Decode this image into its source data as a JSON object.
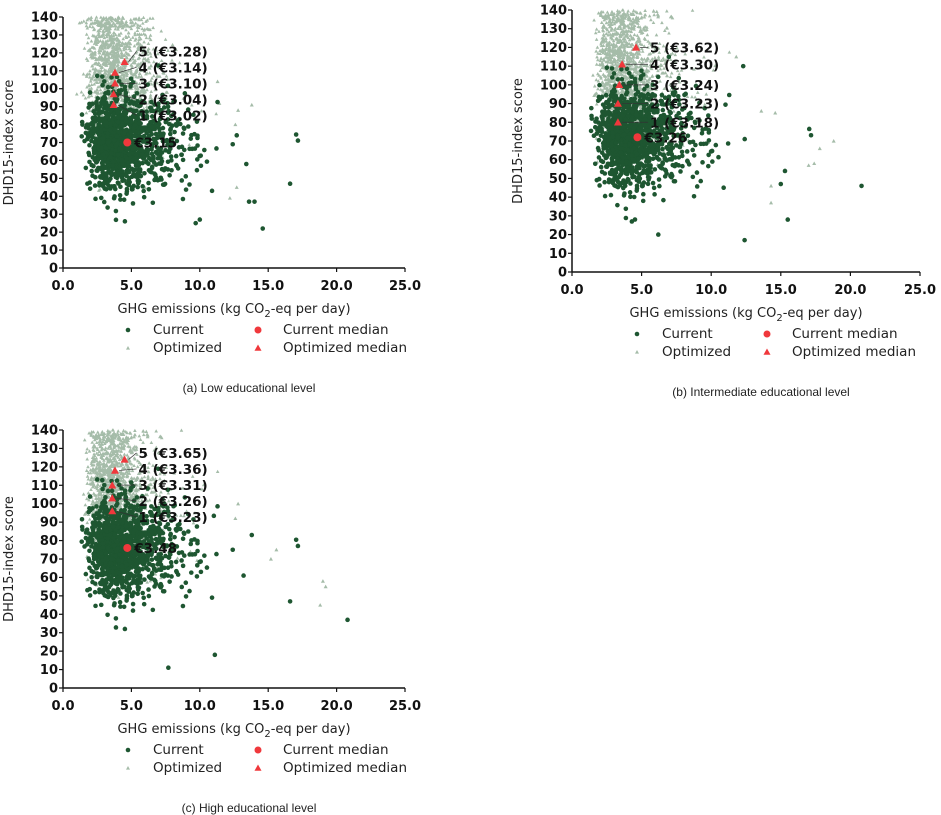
{
  "chart_data": [
    {
      "type": "scatter",
      "id": "a",
      "caption": "(a) Low educational level",
      "xlabel": "GHG emissions (kg CO",
      "xlabel_sub": "2",
      "xlabel_end": "-eq per day)",
      "ylabel": "DHD15-index score",
      "xlim": [
        0,
        25
      ],
      "ylim": [
        0,
        140
      ],
      "xticks": [
        "0.0",
        "5.0",
        "10.0",
        "15.0",
        "20.0",
        "25.0"
      ],
      "yticks": [
        "0",
        "10",
        "20",
        "30",
        "40",
        "50",
        "60",
        "70",
        "80",
        "90",
        "100",
        "110",
        "120",
        "130",
        "140"
      ],
      "legend": [
        "Current",
        "Optimized",
        "Current median",
        "Optimized median"
      ],
      "current_median": {
        "x": 4.7,
        "y": 70,
        "label": "€3.15"
      },
      "optimized_medians": [
        {
          "x": 3.7,
          "y": 91,
          "label": "1 (€3.02)"
        },
        {
          "x": 3.7,
          "y": 97,
          "label": "2 (€3.04)"
        },
        {
          "x": 3.8,
          "y": 103,
          "label": "3 (€3.10)"
        },
        {
          "x": 3.8,
          "y": 109,
          "label": "4 (€3.14)"
        },
        {
          "x": 4.5,
          "y": 115,
          "label": "5 (€3.28)"
        }
      ],
      "current_outliers": [
        [
          16.6,
          47
        ],
        [
          14.6,
          22
        ],
        [
          14.0,
          37
        ],
        [
          13.6,
          37
        ],
        [
          9.7,
          25
        ],
        [
          10.0,
          27
        ],
        [
          12.7,
          74
        ],
        [
          13.4,
          58
        ]
      ],
      "optimized_outliers": [
        [
          12.8,
          88
        ],
        [
          13.8,
          91
        ],
        [
          12.6,
          80
        ],
        [
          11.3,
          104
        ],
        [
          12.2,
          39
        ],
        [
          12.7,
          45
        ]
      ]
    },
    {
      "type": "scatter",
      "id": "b",
      "caption": "(b) Intermediate educational level",
      "xlabel": "GHG emissions (kg CO",
      "xlabel_sub": "2",
      "xlabel_end": "-eq per day)",
      "ylabel": "DHD15-index score",
      "xlim": [
        0,
        25
      ],
      "ylim": [
        0,
        140
      ],
      "xticks": [
        "0.0",
        "5.0",
        "10.0",
        "15.0",
        "20.0",
        "25.0"
      ],
      "yticks": [
        "0",
        "10",
        "20",
        "30",
        "40",
        "50",
        "60",
        "70",
        "80",
        "90",
        "100",
        "110",
        "120",
        "130",
        "140"
      ],
      "legend": [
        "Current",
        "Optimized",
        "Current median",
        "Optimized median"
      ],
      "current_median": {
        "x": 4.7,
        "y": 72,
        "label": "€3.26"
      },
      "optimized_medians": [
        {
          "x": 3.3,
          "y": 80,
          "label": "1 (€3.18)"
        },
        {
          "x": 3.3,
          "y": 90,
          "label": "2 (€3.23)"
        },
        {
          "x": 3.4,
          "y": 100,
          "label": "3 (€3.24)"
        },
        {
          "x": 3.6,
          "y": 111,
          "label": "4 (€3.30)"
        },
        {
          "x": 4.6,
          "y": 120,
          "label": "5 (€3.62)"
        }
      ],
      "current_outliers": [
        [
          20.8,
          46
        ],
        [
          15.5,
          28
        ],
        [
          12.4,
          17
        ],
        [
          15.3,
          54
        ],
        [
          15.0,
          47
        ],
        [
          12.3,
          110
        ],
        [
          6.2,
          20
        ],
        [
          4.3,
          27
        ]
      ],
      "optimized_outliers": [
        [
          18.8,
          70
        ],
        [
          17.8,
          66
        ],
        [
          17.4,
          58
        ],
        [
          17.0,
          57
        ],
        [
          14.6,
          85
        ],
        [
          13.6,
          86
        ],
        [
          14.3,
          37
        ],
        [
          14.3,
          46
        ],
        [
          11.8,
          115
        ]
      ]
    },
    {
      "type": "scatter",
      "id": "c",
      "caption": "(c) High educational level",
      "xlabel": "GHG emissions (kg CO",
      "xlabel_sub": "2",
      "xlabel_end": "-eq per day)",
      "ylabel": "DHD15-index score",
      "xlim": [
        0,
        25
      ],
      "ylim": [
        0,
        140
      ],
      "xticks": [
        "0.0",
        "5.0",
        "10.0",
        "15.0",
        "20.0",
        "25.0"
      ],
      "yticks": [
        "0",
        "10",
        "20",
        "30",
        "40",
        "50",
        "60",
        "70",
        "80",
        "90",
        "100",
        "110",
        "120",
        "130",
        "140"
      ],
      "legend": [
        "Current",
        "Optimized",
        "Current median",
        "Optimized median"
      ],
      "current_median": {
        "x": 4.7,
        "y": 76,
        "label": "€3.48"
      },
      "optimized_medians": [
        {
          "x": 3.6,
          "y": 96,
          "label": "1 (€3.23)"
        },
        {
          "x": 3.6,
          "y": 103,
          "label": "2 (€3.26)"
        },
        {
          "x": 3.6,
          "y": 110,
          "label": "3 (€3.31)"
        },
        {
          "x": 3.8,
          "y": 118,
          "label": "4 (€3.36)"
        },
        {
          "x": 4.5,
          "y": 124,
          "label": "5 (€3.65)"
        }
      ],
      "current_outliers": [
        [
          20.8,
          37
        ],
        [
          16.6,
          47
        ],
        [
          11.1,
          18
        ],
        [
          7.7,
          11
        ],
        [
          13.8,
          83
        ],
        [
          13.2,
          61
        ]
      ],
      "optimized_outliers": [
        [
          19.0,
          58
        ],
        [
          19.2,
          55
        ],
        [
          18.8,
          45
        ],
        [
          15.6,
          75
        ],
        [
          15.2,
          70
        ],
        [
          12.8,
          100
        ],
        [
          12.6,
          92
        ]
      ]
    }
  ],
  "colors": {
    "current": "#1e5631",
    "optimized": "#a5bca9",
    "median": "#f0383c"
  }
}
